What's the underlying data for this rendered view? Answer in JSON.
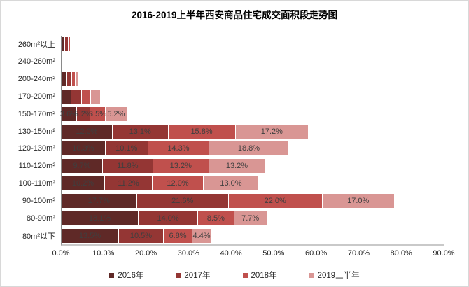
{
  "title": "2016-2019上半年西安商品住宅成交面积段走势图",
  "chart_data": {
    "type": "bar",
    "orientation": "horizontal",
    "stacked": true,
    "grid": false,
    "legend_position": "bottom",
    "xlim": [
      0,
      90
    ],
    "x_ticks": [
      "0.0%",
      "10.0%",
      "20.0%",
      "30.0%",
      "40.0%",
      "50.0%",
      "60.0%",
      "70.0%",
      "80.0%",
      "90.0%"
    ],
    "categories": [
      "260m²以上",
      "240-260m²",
      "200-240m²",
      "170-200m²",
      "150-170m²",
      "130-150m²",
      "120-130m²",
      "110-120m²",
      "100-110m²",
      "90-100m²",
      "80-90m²",
      "80m²以下"
    ],
    "series": [
      {
        "name": "2016年",
        "color": "#5f2927",
        "values": [
          0.9,
          0.1,
          1.3,
          2.3,
          3.6,
          12.0,
          10.3,
          9.7,
          10.2,
          17.7,
          18.1,
          13.5
        ],
        "labels": [
          "",
          "",
          "",
          "",
          "3.6%",
          "12.0%",
          "10.3%",
          "9.7%",
          "10.2%",
          "17.7%",
          "18.1%",
          "13.5%"
        ]
      },
      {
        "name": "2017年",
        "color": "#943634",
        "values": [
          0.7,
          0.1,
          1.1,
          2.4,
          3.2,
          13.1,
          10.1,
          11.8,
          11.2,
          21.6,
          14.0,
          10.5
        ],
        "labels": [
          "",
          "",
          "",
          "",
          "3.2%",
          "13.1%",
          "10.1%",
          "11.8%",
          "11.2%",
          "21.6%",
          "14.0%",
          "10.5%"
        ]
      },
      {
        "name": "2018年",
        "color": "#c0504d",
        "values": [
          0.5,
          0.1,
          0.9,
          2.2,
          3.5,
          15.8,
          14.3,
          13.2,
          12.0,
          22.0,
          8.5,
          6.8
        ],
        "labels": [
          "",
          "",
          "",
          "",
          "3.5%",
          "15.8%",
          "14.3%",
          "13.2%",
          "12.0%",
          "22.0%",
          "8.5%",
          "6.8%"
        ]
      },
      {
        "name": "2019上半年",
        "color": "#d99694",
        "values": [
          0.3,
          0.2,
          0.8,
          2.4,
          5.2,
          17.2,
          18.8,
          13.2,
          13.0,
          17.0,
          7.7,
          4.4
        ],
        "labels": [
          "",
          "",
          "",
          "",
          "5.2%",
          "17.2%",
          "18.8%",
          "13.2%",
          "13.0%",
          "17.0%",
          "7.7%",
          "4.4%"
        ]
      }
    ]
  }
}
